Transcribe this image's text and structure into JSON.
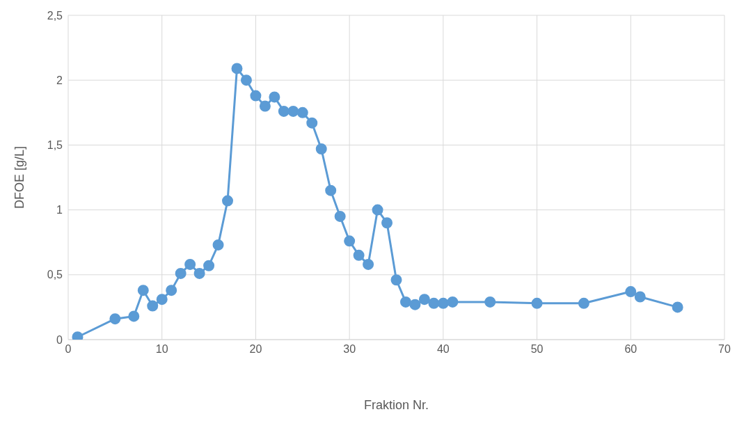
{
  "chart_data": {
    "type": "line",
    "xlabel": "Fraktion Nr.",
    "ylabel": "DFOE [g/L]",
    "x": [
      1,
      5,
      7,
      8,
      9,
      10,
      11,
      12,
      13,
      14,
      15,
      16,
      17,
      18,
      19,
      20,
      21,
      22,
      23,
      24,
      25,
      26,
      27,
      28,
      29,
      30,
      31,
      32,
      33,
      34,
      35,
      36,
      37,
      38,
      39,
      40,
      41,
      45,
      50,
      55,
      60,
      61,
      65
    ],
    "series": [
      {
        "color": "#5b9bd5",
        "values": [
          0.02,
          0.16,
          0.18,
          0.38,
          0.26,
          0.31,
          0.38,
          0.51,
          0.58,
          0.51,
          0.57,
          0.73,
          1.07,
          2.09,
          2.0,
          1.88,
          1.8,
          1.87,
          1.76,
          1.76,
          1.75,
          1.67,
          1.47,
          1.15,
          0.95,
          0.76,
          0.65,
          0.58,
          1.0,
          0.9,
          0.46,
          0.29,
          0.27,
          0.31,
          0.28,
          0.28,
          0.29,
          0.29,
          0.28,
          0.28,
          0.37,
          0.33,
          0.25
        ]
      }
    ],
    "xlim": [
      0,
      70
    ],
    "xticks": [
      0,
      10,
      20,
      30,
      40,
      50,
      60,
      70
    ],
    "ylim": [
      0,
      2.5
    ],
    "yticks": [
      0,
      {
        "value": 0.5,
        "label": "0,5"
      },
      1,
      {
        "value": 1.5,
        "label": "1,5"
      },
      2,
      {
        "value": 2.5,
        "label": "2,5"
      }
    ],
    "grid": true,
    "marker": "circle",
    "line_style": "solid"
  }
}
